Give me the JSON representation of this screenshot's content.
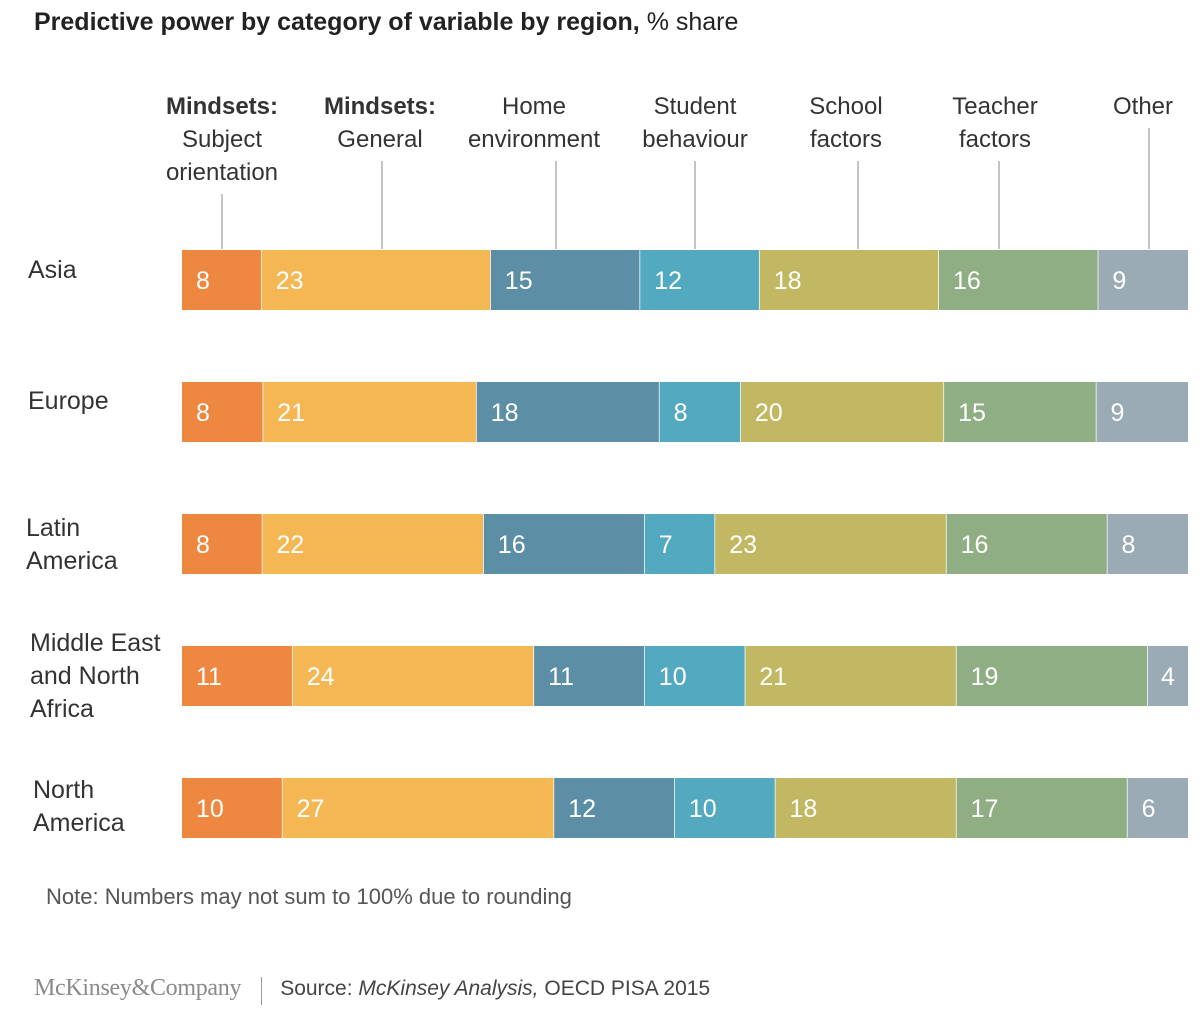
{
  "title_bold": "Predictive power by category of variable by region,",
  "title_normal": " % share",
  "note": "Note: Numbers may not sum to 100% due to rounding",
  "footer": {
    "logo": "McKinsey&Company",
    "source_prefix": "Source: ",
    "source_italic": "McKinsey Analysis,",
    "source_rest": " OECD PISA 2015"
  },
  "chart_data": {
    "type": "bar",
    "orientation": "horizontal",
    "stacked": true,
    "title": "Predictive power by category of variable by region, % share",
    "categories": [
      "Asia",
      "Europe",
      "Latin America",
      "Middle East and North Africa",
      "North America"
    ],
    "series": [
      {
        "name": "Mindsets: Subject orientation",
        "color": "#ee8740",
        "values": [
          8,
          8,
          8,
          11,
          10
        ]
      },
      {
        "name": "Mindsets: General",
        "color": "#f5b753",
        "values": [
          23,
          21,
          22,
          24,
          27
        ]
      },
      {
        "name": "Home environment",
        "color": "#5c8fa6",
        "values": [
          15,
          18,
          16,
          11,
          12
        ]
      },
      {
        "name": "Student behaviour",
        "color": "#52a9c0",
        "values": [
          12,
          8,
          7,
          10,
          10
        ]
      },
      {
        "name": "School factors",
        "color": "#c2b762",
        "values": [
          18,
          20,
          23,
          21,
          18
        ]
      },
      {
        "name": "Teacher factors",
        "color": "#8fae84",
        "values": [
          16,
          15,
          16,
          19,
          17
        ]
      },
      {
        "name": "Other",
        "color": "#9aabb6",
        "values": [
          9,
          9,
          8,
          4,
          6
        ]
      }
    ],
    "legend_placement": "top, labels above first bar with leader lines",
    "grid": false
  }
}
